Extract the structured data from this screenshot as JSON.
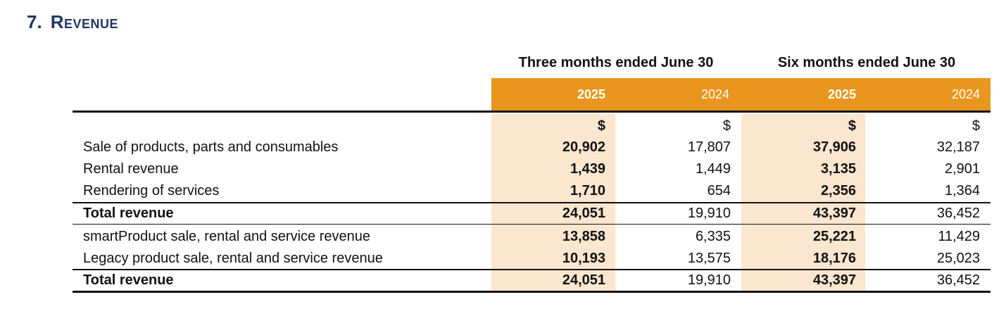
{
  "section": {
    "number": "7.",
    "title": "Revenue"
  },
  "periods": [
    {
      "label": "Three months ended June 30",
      "years": [
        "2025",
        "2024"
      ]
    },
    {
      "label": "Six months ended June 30",
      "years": [
        "2025",
        "2024"
      ]
    }
  ],
  "currency": [
    "$",
    "$",
    "$",
    "$"
  ],
  "rows": [
    {
      "label": "Sale of products, parts and consumables",
      "values": [
        "20,902",
        "17,807",
        "37,906",
        "32,187"
      ],
      "bold": false
    },
    {
      "label": "Rental revenue",
      "values": [
        "1,439",
        "1,449",
        "3,135",
        "2,901"
      ],
      "bold": false
    },
    {
      "label": "Rendering of services",
      "values": [
        "1,710",
        "654",
        "2,356",
        "1,364"
      ],
      "bold": false
    },
    {
      "label": "Total revenue",
      "values": [
        "24,051",
        "19,910",
        "43,397",
        "36,452"
      ],
      "bold": true
    },
    {
      "label": "smartProduct sale, rental and service revenue",
      "values": [
        "13,858",
        "6,335",
        "25,221",
        "11,429"
      ],
      "bold": false
    },
    {
      "label": "Legacy product sale, rental and service revenue",
      "values": [
        "10,193",
        "13,575",
        "18,176",
        "25,023"
      ],
      "bold": false
    },
    {
      "label": "Total revenue",
      "values": [
        "24,051",
        "19,910",
        "43,397",
        "36,452"
      ],
      "bold": true
    }
  ],
  "colors": {
    "title": "#1f3763",
    "header": "#e8961e",
    "shade": "#fbe6cf"
  }
}
